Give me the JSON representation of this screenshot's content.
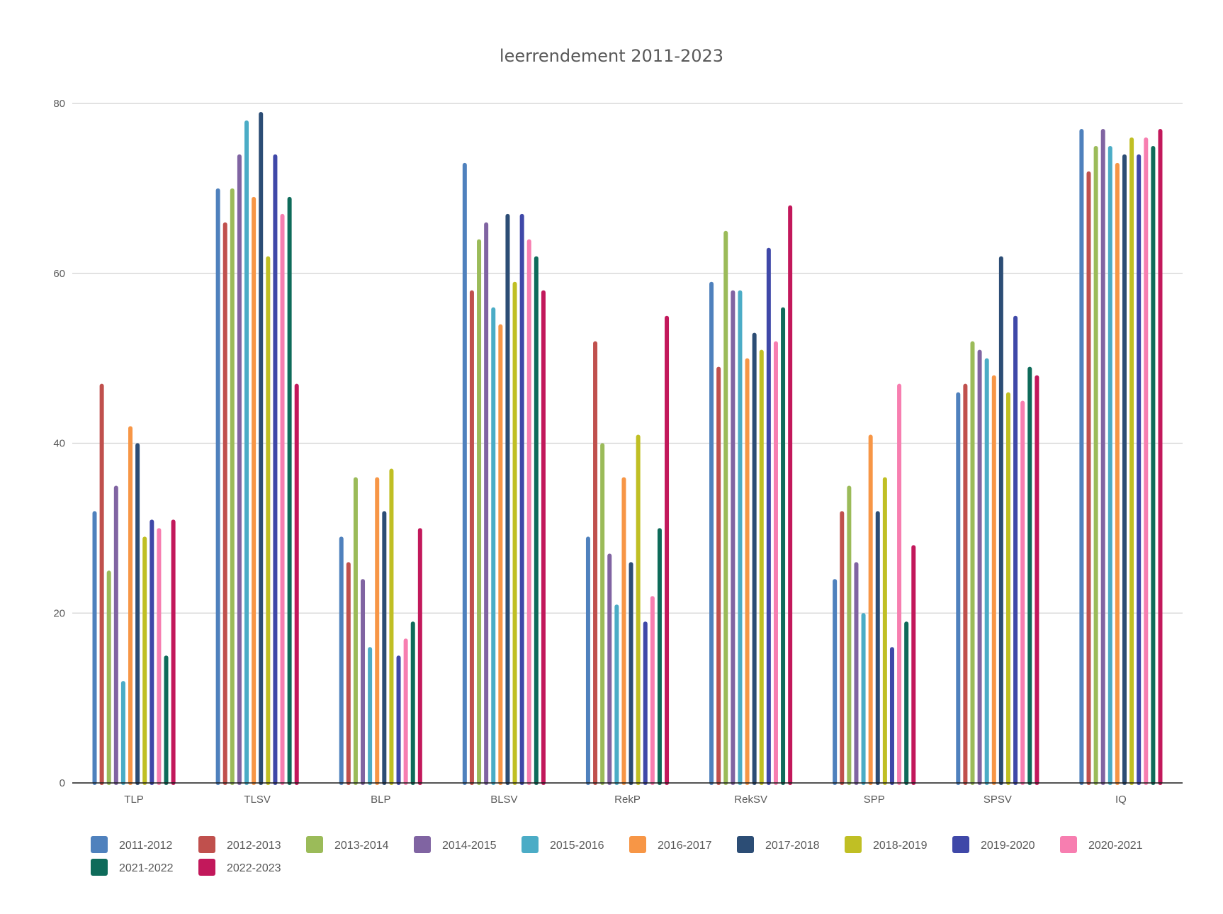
{
  "chart_data": {
    "type": "bar",
    "title": "leerrendement 2011-2023",
    "xlabel": "",
    "ylabel": "",
    "ylim": [
      0,
      80
    ],
    "yticks": [
      0,
      20,
      40,
      60,
      80
    ],
    "grid": true,
    "legend_position": "bottom",
    "categories": [
      "TLP",
      "TLSV",
      "BLP",
      "BLSV",
      "RekP",
      "RekSV",
      "SPP",
      "SPSV",
      "IQ"
    ],
    "series": [
      {
        "name": "2011-2012",
        "color": "#4f81bd",
        "values": [
          32,
          70,
          29,
          73,
          29,
          59,
          24,
          46,
          77
        ]
      },
      {
        "name": "2012-2013",
        "color": "#c0504d",
        "values": [
          47,
          66,
          26,
          58,
          52,
          49,
          32,
          47,
          72
        ]
      },
      {
        "name": "2013-2014",
        "color": "#9bbb59",
        "values": [
          25,
          70,
          36,
          64,
          40,
          65,
          35,
          52,
          75
        ]
      },
      {
        "name": "2014-2015",
        "color": "#8064a2",
        "values": [
          35,
          74,
          24,
          66,
          27,
          58,
          26,
          51,
          77
        ]
      },
      {
        "name": "2015-2016",
        "color": "#4bacc6",
        "values": [
          12,
          78,
          16,
          56,
          21,
          58,
          20,
          50,
          75
        ]
      },
      {
        "name": "2016-2017",
        "color": "#f79646",
        "values": [
          42,
          69,
          36,
          54,
          36,
          50,
          41,
          48,
          73
        ]
      },
      {
        "name": "2017-2018",
        "color": "#2c4d75",
        "values": [
          40,
          79,
          32,
          67,
          26,
          53,
          32,
          62,
          74
        ]
      },
      {
        "name": "2018-2019",
        "color": "#c0bf24",
        "values": [
          29,
          62,
          37,
          59,
          41,
          51,
          36,
          46,
          76
        ]
      },
      {
        "name": "2019-2020",
        "color": "#3f48a8",
        "values": [
          31,
          74,
          15,
          67,
          19,
          63,
          16,
          55,
          74
        ]
      },
      {
        "name": "2020-2021",
        "color": "#f77eb0",
        "values": [
          30,
          67,
          17,
          64,
          22,
          52,
          47,
          45,
          76
        ]
      },
      {
        "name": "2021-2022",
        "color": "#0e6b5a",
        "values": [
          15,
          69,
          19,
          62,
          30,
          56,
          19,
          49,
          75
        ]
      },
      {
        "name": "2022-2023",
        "color": "#c2185b",
        "values": [
          31,
          47,
          30,
          58,
          55,
          68,
          28,
          48,
          77
        ]
      }
    ]
  }
}
